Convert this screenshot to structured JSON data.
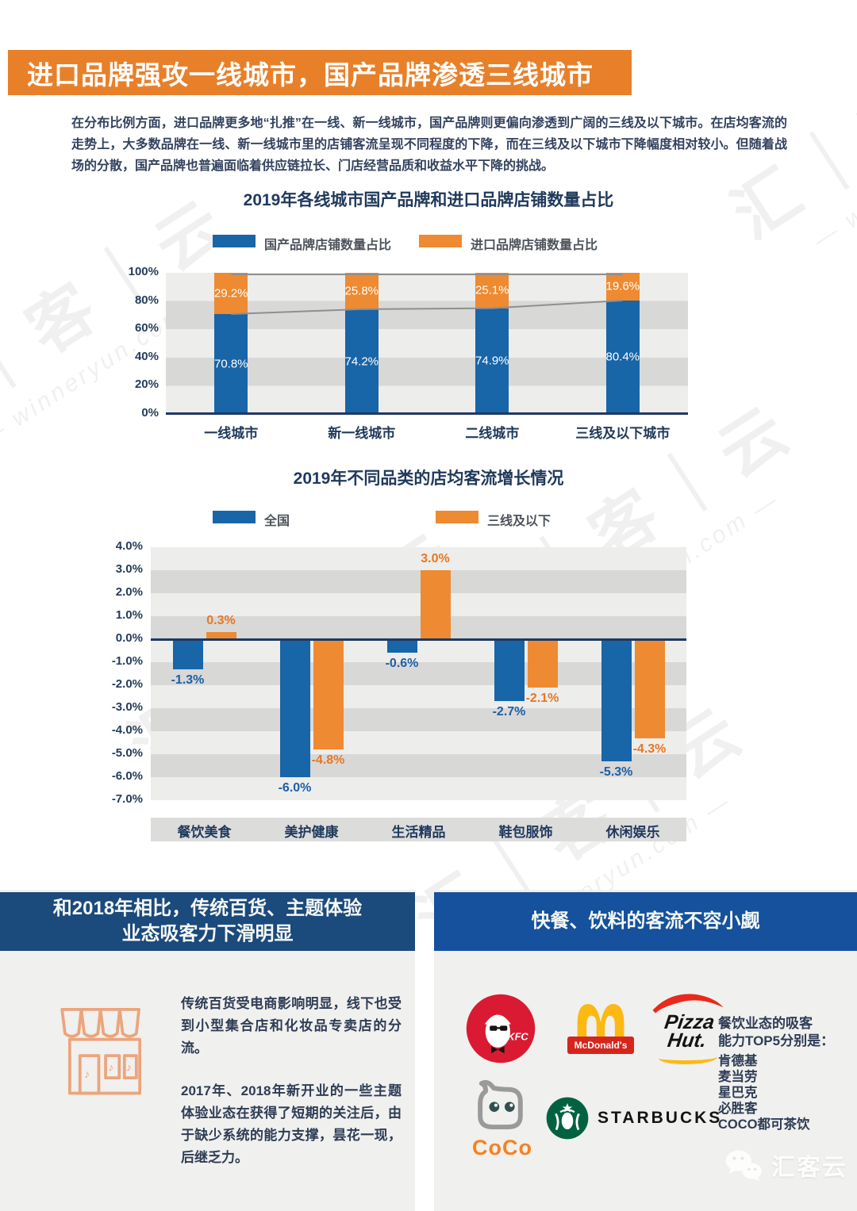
{
  "banner": {
    "title": "进口品牌强攻一线城市，国产品牌渗透三线城市"
  },
  "intro": "在分布比例方面，进口品牌更多地“扎推”在一线、新一线城市，国产品牌则更偏向渗透到广阔的三线及以下城市。在店均客流的走势上，大多数品牌在一线、新一线城市里的店铺客流呈现不同程度的下降，而在三线及以下城市下降幅度相对较小。但随着战场的分散，国产品牌也普遍面临着供应链拉长、门店经营品质和收益水平下降的挑战。",
  "chart_data": [
    {
      "type": "bar",
      "variant": "stacked",
      "title": "2019年各线城市国产品牌和进口品牌店铺数量占比",
      "categories": [
        "一线城市",
        "新一线城市",
        "二线城市",
        "三线及以下城市"
      ],
      "series": [
        {
          "name": "国产品牌店铺数量占比",
          "color": "#1865a8",
          "values": [
            70.8,
            74.2,
            74.9,
            80.4
          ]
        },
        {
          "name": "进口品牌店铺数量占比",
          "color": "#ee8a31",
          "values": [
            29.2,
            25.8,
            25.1,
            19.6
          ]
        }
      ],
      "ylim": [
        0,
        100
      ],
      "yticks": [
        "100%",
        "80%",
        "60%",
        "40%",
        "20%",
        "0%"
      ],
      "grid": "striped-bands",
      "legend_position": "top",
      "line_overlay_color": "#8f8f8f"
    },
    {
      "type": "bar",
      "variant": "grouped",
      "title": "2019年不同品类的店均客流增长情况",
      "categories": [
        "餐饮美食",
        "美护健康",
        "生活精品",
        "鞋包服饰",
        "休闲娱乐"
      ],
      "series": [
        {
          "name": "全国",
          "color": "#1865a8",
          "label_color": "#1d5fa5",
          "values": [
            -1.3,
            -6.0,
            -0.6,
            -2.7,
            -5.3
          ]
        },
        {
          "name": "三线及以下",
          "color": "#ee8a31",
          "label_color": "#e87722",
          "values": [
            0.3,
            -4.8,
            3.0,
            -2.1,
            -4.3
          ]
        }
      ],
      "ylim": [
        -7,
        4
      ],
      "yticks": [
        "4.0%",
        "3.0%",
        "2.0%",
        "1.0%",
        "0.0%",
        "-1.0%",
        "-2.0%",
        "-3.0%",
        "-4.0%",
        "-5.0%",
        "-6.0%",
        "-7.0%"
      ],
      "grid": "striped-bands",
      "legend_position": "top"
    }
  ],
  "left_panel": {
    "title_line1": "和2018年相比，传统百货、主题体验",
    "title_line2": "业态吸客力下滑明显",
    "para1": "传统百货受电商影响明显，线下也受到小型集合店和化妆品专卖店的分流。",
    "para2": "2017年、2018年新开业的一些主题体验业态在获得了短期的关注后，由于缺少系统的能力支撑，昙花一现，后继乏力。"
  },
  "right_panel": {
    "title": "快餐、饮料的客流不容小觑",
    "caption_line1": "餐饮业态的吸客",
    "caption_line2": "能力TOP5分别是：",
    "top5": [
      "肯德基",
      "麦当劳",
      "星巴克",
      "必胜客",
      "COCO都可茶饮"
    ],
    "logos": {
      "kfc": "KFC",
      "mcdonalds": "McDonald's",
      "pizza_line1": "Pizza",
      "pizza_line2": "Hut.",
      "coco": "CoCo",
      "starbucks": "STARBUCKS"
    }
  },
  "watermark": {
    "brand": "汇｜客｜云",
    "site": "— winneryun.com —",
    "footer_brand": "汇客云"
  },
  "colors": {
    "banner_orange": "#e8802a",
    "bar_blue": "#1865a8",
    "bar_orange": "#ee8a31",
    "navy_text": "#203a5c",
    "axis_line": "#1f3864",
    "left_header": "#1b4a7c",
    "right_header": "#15519c",
    "panel_bg": "#f0f0ee"
  }
}
